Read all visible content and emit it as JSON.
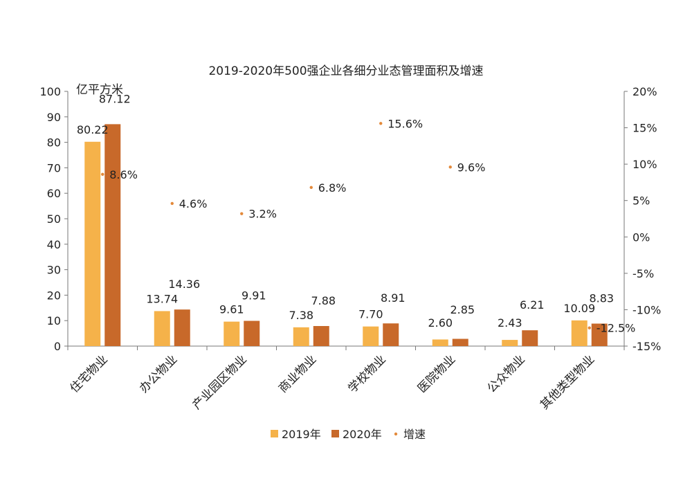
{
  "chart_data": {
    "type": "bar",
    "title": "2019-2020年500强企业各细分业态管理面积及增速",
    "y_unit_label": "亿平方米",
    "categories": [
      "住宅物业",
      "办公物业",
      "产业园区物业",
      "商业物业",
      "学校物业",
      "医院物业",
      "公众物业",
      "其他类型物业"
    ],
    "series": [
      {
        "name": "2019年",
        "axis": "left",
        "values": [
          80.22,
          13.74,
          9.61,
          7.38,
          7.7,
          2.6,
          2.43,
          10.09
        ],
        "labels": [
          "80.22",
          "13.74",
          "9.61",
          "7.38",
          "7.70",
          "2.60",
          "2.43",
          "10.09"
        ]
      },
      {
        "name": "2020年",
        "axis": "left",
        "values": [
          87.12,
          14.36,
          9.91,
          7.88,
          8.91,
          2.85,
          6.21,
          8.83
        ],
        "labels": [
          "87.12",
          "14.36",
          "9.91",
          "7.88",
          "8.91",
          "2.85",
          "6.21",
          "8.83"
        ]
      },
      {
        "name": "增速",
        "axis": "right",
        "kind": "dot",
        "values": [
          8.6,
          4.6,
          3.2,
          6.8,
          15.6,
          9.6,
          null,
          -12.5
        ],
        "labels": [
          "8.6%",
          "4.6%",
          "3.2%",
          "6.8%",
          "15.6%",
          "9.6%",
          "",
          "-12.5%"
        ]
      }
    ],
    "y_left": {
      "lim": [
        0,
        100
      ],
      "ticks": [
        "0",
        "10",
        "20",
        "30",
        "40",
        "50",
        "60",
        "70",
        "80",
        "90",
        "100"
      ]
    },
    "y_right": {
      "lim": [
        -15,
        20
      ],
      "ticks": [
        "-15%",
        "-10%",
        "-5%",
        "0%",
        "5%",
        "10%",
        "15%",
        "20%"
      ]
    },
    "legend": {
      "position": "bottom",
      "items": [
        "2019年",
        "2020年",
        "增速"
      ]
    },
    "grid": false
  },
  "colors": {
    "s2019": "#f5b24a",
    "s2020": "#c8692a",
    "growth": "#e3893a",
    "axis": "#777777",
    "text": "#222222"
  }
}
